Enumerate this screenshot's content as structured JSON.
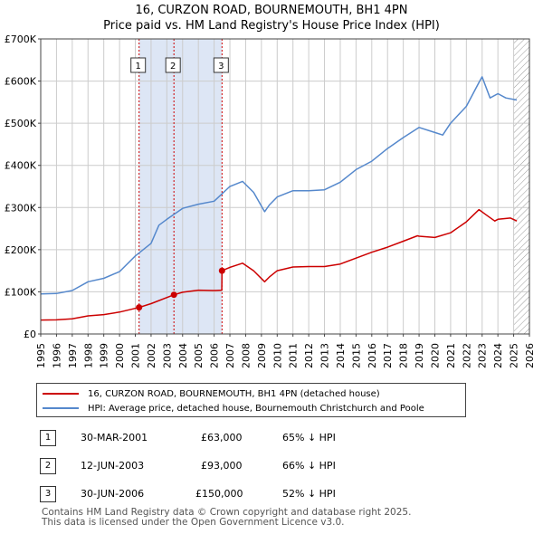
{
  "title_line1": "16, CURZON ROAD, BOURNEMOUTH, BH1 4PN",
  "title_line2": "Price paid vs. HM Land Registry's House Price Index (HPI)",
  "colors": {
    "price": "#cc0000",
    "hpi": "#5588cc",
    "shade": "#dde6f5",
    "grid": "#cccccc",
    "marker": "#cc0000"
  },
  "legend": {
    "price_label": "16, CURZON ROAD, BOURNEMOUTH, BH1 4PN (detached house)",
    "hpi_label": "HPI: Average price, detached house, Bournemouth Christchurch and Poole"
  },
  "sales": [
    {
      "num": "1",
      "date": "30-MAR-2001",
      "price": "£63,000",
      "hpi": "65% ↓ HPI"
    },
    {
      "num": "2",
      "date": "12-JUN-2003",
      "price": "£93,000",
      "hpi": "66% ↓ HPI"
    },
    {
      "num": "3",
      "date": "30-JUN-2006",
      "price": "£150,000",
      "hpi": "52% ↓ HPI"
    }
  ],
  "footer_line1": "Contains HM Land Registry data © Crown copyright and database right 2025.",
  "footer_line2": "This data is licensed under the Open Government Licence v3.0.",
  "chart_data": {
    "type": "line",
    "title": "16, CURZON ROAD, BOURNEMOUTH, BH1 4PN",
    "subtitle": "Price paid vs. HM Land Registry's House Price Index (HPI)",
    "xlim": [
      1995,
      2026
    ],
    "ylim": [
      0,
      700000
    ],
    "y_ticks": [
      0,
      100000,
      200000,
      300000,
      400000,
      500000,
      600000,
      700000
    ],
    "y_tick_labels": [
      "£0",
      "£100K",
      "£200K",
      "£300K",
      "£400K",
      "£500K",
      "£600K",
      "£700K"
    ],
    "x_ticks": [
      1995,
      1996,
      1997,
      1998,
      1999,
      2000,
      2001,
      2002,
      2003,
      2004,
      2005,
      2006,
      2007,
      2008,
      2009,
      2010,
      2011,
      2012,
      2013,
      2014,
      2015,
      2016,
      2017,
      2018,
      2019,
      2020,
      2021,
      2022,
      2023,
      2024,
      2025,
      2026
    ],
    "x_tick_labels": [
      "1995",
      "1996",
      "1997",
      "1998",
      "1999",
      "2000",
      "2001",
      "2002",
      "2003",
      "2004",
      "2005",
      "2006",
      "2007",
      "2008",
      "2009",
      "2010",
      "2011",
      "2012",
      "2013",
      "2014",
      "2015",
      "2016",
      "2017",
      "2018",
      "2019",
      "2020",
      "2021",
      "2022",
      "2023",
      "2024",
      "2025",
      "2026"
    ],
    "shaded_ranges": [
      [
        2001.24,
        2006.5
      ]
    ],
    "hatch_from": 2025.0,
    "sale_markers": [
      {
        "label": "1",
        "x": 2001.24,
        "y": 63000
      },
      {
        "label": "2",
        "x": 2003.45,
        "y": 93000
      },
      {
        "label": "3",
        "x": 2006.5,
        "y": 150000
      }
    ],
    "series": [
      {
        "name": "16, CURZON ROAD, BOURNEMOUTH, BH1 4PN (detached house)",
        "x": [
          1995,
          1996,
          1997,
          1998,
          1999,
          2000,
          2001.24,
          2002,
          2003.45,
          2004,
          2005,
          2006,
          2006.49,
          2006.5,
          2007,
          2007.8,
          2008.5,
          2009.2,
          2009.5,
          2010,
          2011,
          2012,
          2013,
          2014,
          2015,
          2016,
          2017,
          2018,
          2018.9,
          2019,
          2020,
          2021,
          2022,
          2022.8,
          2023.2,
          2023.8,
          2024,
          2024.8,
          2025.2
        ],
        "y": [
          33000,
          33500,
          36000,
          43000,
          46000,
          52000,
          63000,
          72000,
          93000,
          99000,
          104000,
          103000,
          104000,
          150000,
          158000,
          168000,
          150000,
          124000,
          135000,
          150000,
          159000,
          160000,
          160000,
          166000,
          180000,
          194000,
          206000,
          220000,
          233000,
          232000,
          229000,
          240000,
          266000,
          295000,
          284000,
          268000,
          272000,
          275000,
          268000
        ]
      },
      {
        "name": "HPI: Average price, detached house, Bournemouth Christchurch and Poole",
        "x": [
          1995,
          1996,
          1997,
          1998,
          1999,
          2000,
          2001,
          2002,
          2002.5,
          2003,
          2004,
          2005,
          2006,
          2007,
          2007.8,
          2008.5,
          2009.2,
          2009.5,
          2010,
          2011,
          2012,
          2013,
          2014,
          2015,
          2016,
          2017,
          2018,
          2019,
          2020,
          2020.5,
          2021,
          2021.5,
          2022,
          2022.8,
          2023,
          2023.5,
          2024,
          2024.5,
          2025.2
        ],
        "y": [
          95000,
          96000,
          103000,
          124000,
          132000,
          148000,
          185000,
          215000,
          258000,
          272000,
          298000,
          308000,
          315000,
          350000,
          362000,
          336000,
          290000,
          306000,
          325000,
          340000,
          340000,
          342000,
          360000,
          390000,
          410000,
          440000,
          466000,
          490000,
          478000,
          472000,
          500000,
          520000,
          540000,
          597000,
          610000,
          560000,
          570000,
          560000,
          555000
        ]
      }
    ]
  }
}
